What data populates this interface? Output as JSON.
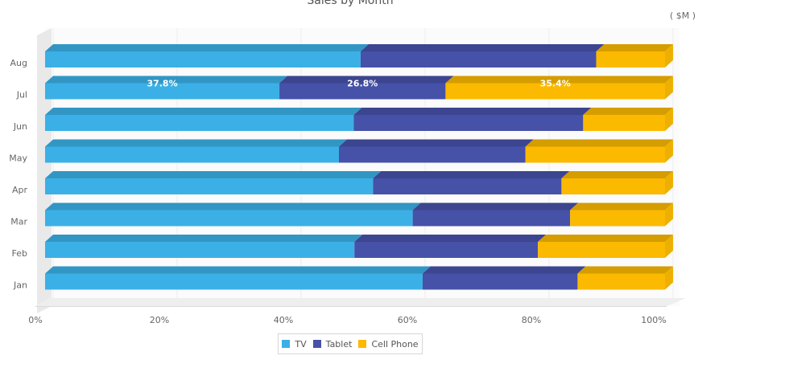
{
  "chart_data": {
    "type": "bar",
    "orientation": "horizontal",
    "stacked": true,
    "percent": true,
    "three_d": true,
    "title": "Sales by Month",
    "unit_label": "( $M )",
    "categories": [
      "Jan",
      "Feb",
      "Mar",
      "Apr",
      "May",
      "Jun",
      "Jul",
      "Aug"
    ],
    "series": [
      {
        "name": "TV",
        "color": "#3bb0e6",
        "values": [
          60.9,
          49.9,
          59.3,
          52.9,
          47.4,
          49.8,
          37.8,
          50.9
        ]
      },
      {
        "name": "Tablet",
        "color": "#4651a8",
        "values": [
          25.0,
          29.6,
          25.4,
          30.4,
          30.1,
          37.0,
          26.8,
          38.0
        ]
      },
      {
        "name": "Cell Phone",
        "color": "#fbb900",
        "values": [
          14.1,
          20.5,
          15.3,
          16.7,
          22.5,
          13.2,
          35.4,
          11.1
        ]
      }
    ],
    "data_labels": {
      "Jul": [
        "37.8%",
        "26.8%",
        "35.4%"
      ]
    },
    "x_ticks": [
      "0%",
      "20%",
      "40%",
      "60%",
      "80%",
      "100%"
    ],
    "xlim": [
      0,
      100
    ],
    "grid": true,
    "legend_position": "bottom"
  }
}
